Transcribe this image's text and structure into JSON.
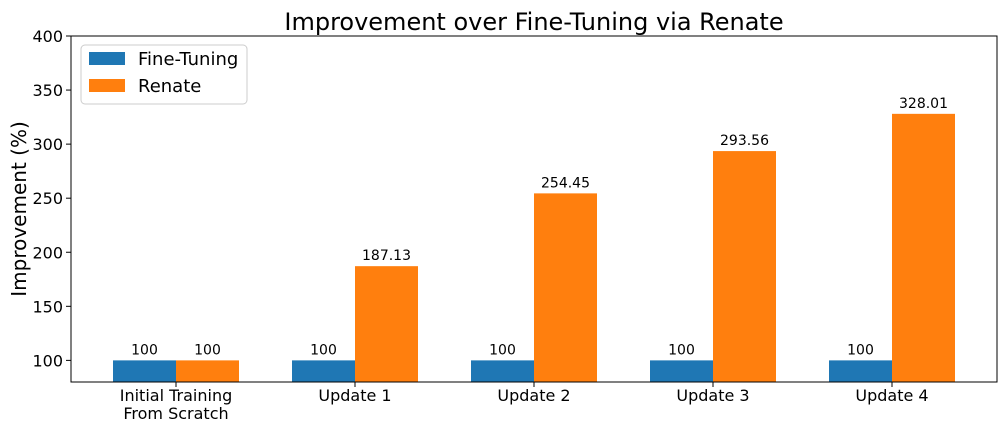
{
  "chart_data": {
    "type": "bar",
    "title": "Improvement over Fine-Tuning via Renate",
    "xlabel": "",
    "ylabel": "Improvement (%)",
    "ylim": [
      80,
      400
    ],
    "yticks": [
      100,
      150,
      200,
      250,
      300,
      350,
      400
    ],
    "categories": [
      [
        "Initial Training",
        "From Scratch"
      ],
      [
        "Update 1"
      ],
      [
        "Update 2"
      ],
      [
        "Update 3"
      ],
      [
        "Update 4"
      ]
    ],
    "series": [
      {
        "name": "Fine-Tuning",
        "color": "#1f77b4",
        "values": [
          100,
          100,
          100,
          100,
          100
        ],
        "labels": [
          "100",
          "100",
          "100",
          "100",
          "100"
        ]
      },
      {
        "name": "Renate",
        "color": "#ff7f0e",
        "values": [
          100,
          187.13,
          254.45,
          293.56,
          328.01
        ],
        "labels": [
          "100",
          "187.13",
          "254.45",
          "293.56",
          "328.01"
        ]
      }
    ],
    "legend_position": "top-left",
    "grid": false
  }
}
